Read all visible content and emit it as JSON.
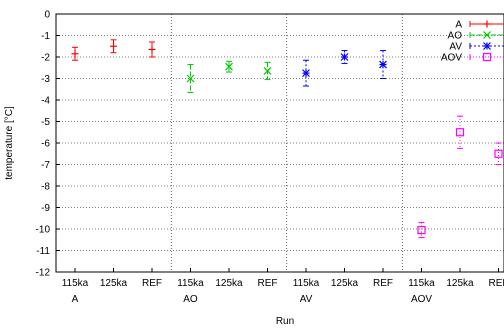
{
  "chart_data": {
    "type": "scatter",
    "xlabel": "Run",
    "ylabel": "temperature [°C]",
    "ylim": [
      -12,
      0
    ],
    "yticks": [
      0,
      -1,
      -2,
      -3,
      -4,
      -5,
      -6,
      -7,
      -8,
      -9,
      -10,
      -11,
      -12
    ],
    "grid": "dotted",
    "legend_position": "top-right",
    "categories": [
      "115ka",
      "125ka",
      "REF",
      "115ka",
      "125ka",
      "REF",
      "115ka",
      "125ka",
      "REF",
      "115ka",
      "125ka",
      "REF"
    ],
    "groups": [
      {
        "label": "A",
        "start": 0,
        "end": 2
      },
      {
        "label": "AO",
        "start": 3,
        "end": 5
      },
      {
        "label": "AV",
        "start": 6,
        "end": 8
      },
      {
        "label": "AOV",
        "start": 9,
        "end": 11
      }
    ],
    "series": [
      {
        "name": "A",
        "color": "#ff0000",
        "marker": "plus",
        "dash": "0",
        "points": [
          {
            "x": 0,
            "y": -1.85,
            "err": 0.3
          },
          {
            "x": 1,
            "y": -1.5,
            "err": 0.3
          },
          {
            "x": 2,
            "y": -1.65,
            "err": 0.35
          }
        ]
      },
      {
        "name": "AO",
        "color": "#00cc00",
        "marker": "cross",
        "dash": "5,2",
        "points": [
          {
            "x": 3,
            "y": -3.0,
            "err": 0.65
          },
          {
            "x": 4,
            "y": -2.45,
            "err": 0.25
          },
          {
            "x": 5,
            "y": -2.65,
            "err": 0.4
          }
        ]
      },
      {
        "name": "AV",
        "color": "#0000ff",
        "marker": "star",
        "dash": "2,2",
        "points": [
          {
            "x": 6,
            "y": -2.75,
            "err": 0.6
          },
          {
            "x": 7,
            "y": -2.0,
            "err": 0.3
          },
          {
            "x": 8,
            "y": -2.35,
            "err": 0.65
          }
        ]
      },
      {
        "name": "AOV",
        "color": "#ff00ff",
        "marker": "square",
        "dash": "1,2",
        "points": [
          {
            "x": 9,
            "y": -10.05,
            "err": 0.35
          },
          {
            "x": 10,
            "y": -5.5,
            "err": 0.75
          },
          {
            "x": 11,
            "y": -6.5,
            "err": 0.5
          }
        ]
      }
    ]
  }
}
